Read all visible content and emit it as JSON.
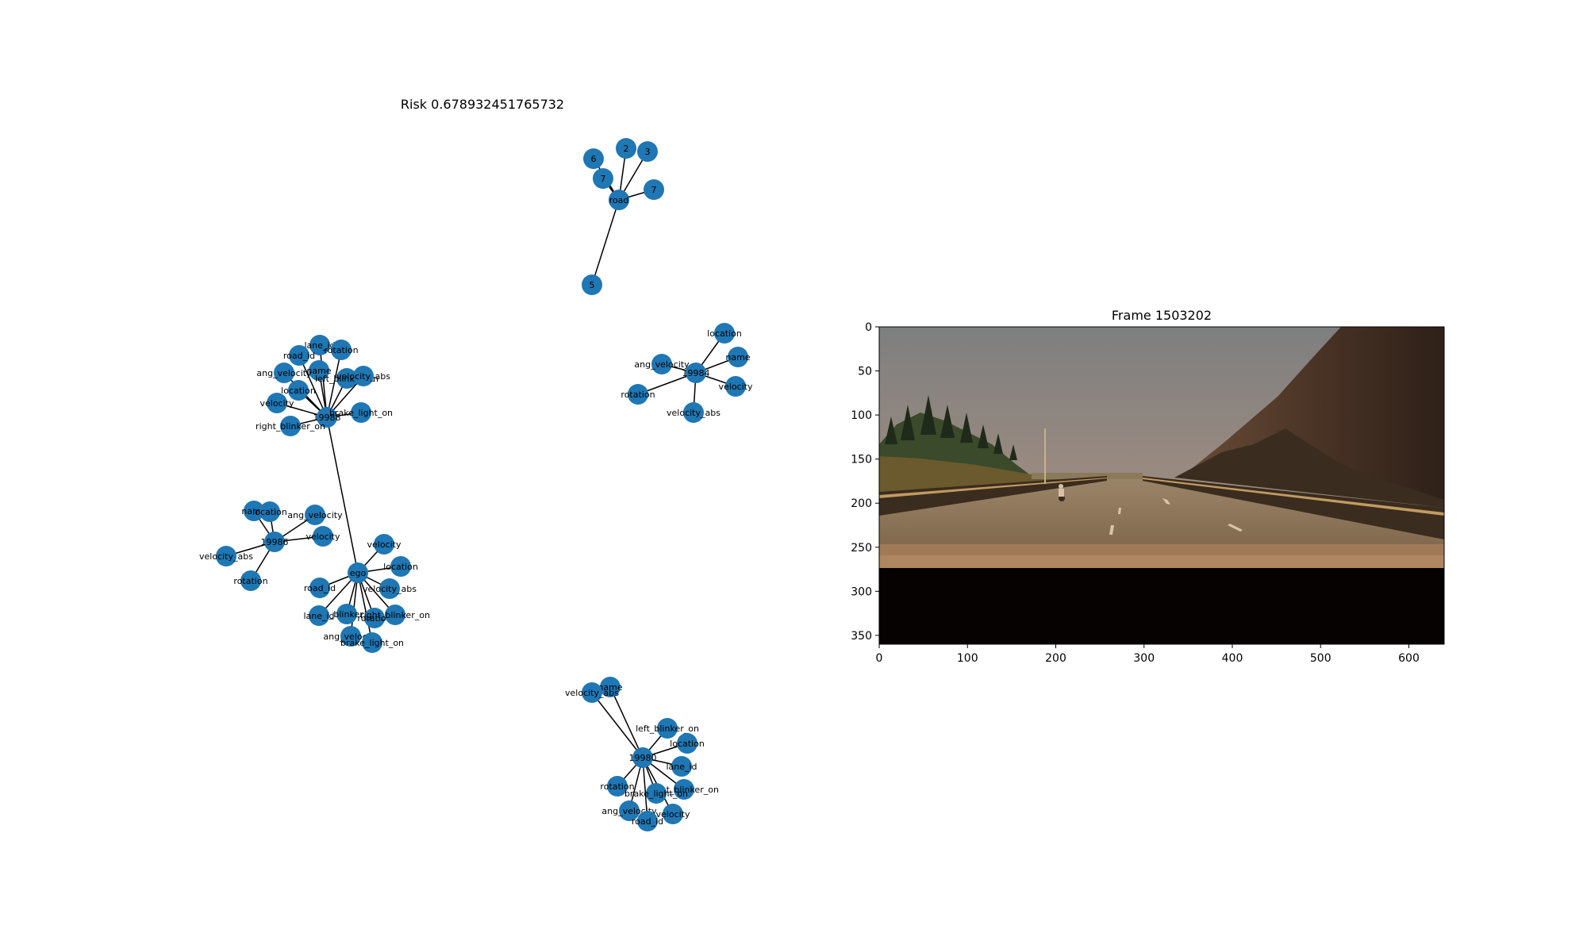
{
  "figure": {
    "graph_title": "Risk 0.678932451765732",
    "frame_title": "Frame 1503202",
    "node_color": "#1f77b4",
    "edge_color": "#000000"
  },
  "graph": {
    "nodes": [
      {
        "id": "n_road",
        "label": "road"
      },
      {
        "id": "n_6",
        "label": "6"
      },
      {
        "id": "n_2",
        "label": "2"
      },
      {
        "id": "n_3",
        "label": "3"
      },
      {
        "id": "n_7a",
        "label": "7"
      },
      {
        "id": "n_7b",
        "label": "7"
      },
      {
        "id": "n_5",
        "label": "5"
      },
      {
        "id": "a",
        "label": "19988"
      },
      {
        "id": "a_lane",
        "label": "lane_id"
      },
      {
        "id": "a_rot",
        "label": "rotation"
      },
      {
        "id": "a_road",
        "label": "road_id"
      },
      {
        "id": "a_name",
        "label": "name"
      },
      {
        "id": "a_ang",
        "label": "ang_velocity"
      },
      {
        "id": "a_left",
        "label": "left_blinker_on"
      },
      {
        "id": "a_vabs",
        "label": "velocity_abs"
      },
      {
        "id": "a_loc",
        "label": "location"
      },
      {
        "id": "a_vel",
        "label": "velocity"
      },
      {
        "id": "a_brake",
        "label": "brake_light_on"
      },
      {
        "id": "a_right",
        "label": "right_blinker_on"
      },
      {
        "id": "b",
        "label": "19986"
      },
      {
        "id": "b_name",
        "label": "name"
      },
      {
        "id": "b_loc",
        "label": "location"
      },
      {
        "id": "b_ang",
        "label": "ang_velocity"
      },
      {
        "id": "b_vel",
        "label": "velocity"
      },
      {
        "id": "b_vabs",
        "label": "velocity_abs"
      },
      {
        "id": "b_rot",
        "label": "rotation"
      },
      {
        "id": "ego",
        "label": "ego"
      },
      {
        "id": "e_vel",
        "label": "velocity"
      },
      {
        "id": "e_loc",
        "label": "location"
      },
      {
        "id": "e_road",
        "label": "road_id"
      },
      {
        "id": "e_vabs",
        "label": "velocity_abs"
      },
      {
        "id": "e_left",
        "label": "left_blinker_on"
      },
      {
        "id": "e_lane",
        "label": "lane_id"
      },
      {
        "id": "e_rot",
        "label": "rotation"
      },
      {
        "id": "e_right",
        "label": "right_blinker_on"
      },
      {
        "id": "e_ang",
        "label": "ang_velocity"
      },
      {
        "id": "e_brake",
        "label": "brake_light_on"
      },
      {
        "id": "c",
        "label": "19984"
      },
      {
        "id": "c_loc",
        "label": "location"
      },
      {
        "id": "c_name",
        "label": "name"
      },
      {
        "id": "c_ang",
        "label": "ang_velocity"
      },
      {
        "id": "c_vel",
        "label": "velocity"
      },
      {
        "id": "c_rot",
        "label": "rotation"
      },
      {
        "id": "c_vabs",
        "label": "velocity_abs"
      },
      {
        "id": "d",
        "label": "19980"
      },
      {
        "id": "d_name",
        "label": "name"
      },
      {
        "id": "d_vabs",
        "label": "velocity_abs"
      },
      {
        "id": "d_left",
        "label": "left_blinker_on"
      },
      {
        "id": "d_loc",
        "label": "location"
      },
      {
        "id": "d_lane",
        "label": "lane_id"
      },
      {
        "id": "d_rot",
        "label": "rotation"
      },
      {
        "id": "d_right",
        "label": "right_blinker_on"
      },
      {
        "id": "d_brake",
        "label": "brake_light_on"
      },
      {
        "id": "d_ang",
        "label": "ang_velocity"
      },
      {
        "id": "d_vel",
        "label": "velocity"
      },
      {
        "id": "d_road",
        "label": "road_id"
      }
    ],
    "edges": [
      [
        "n_road",
        "n_6"
      ],
      [
        "n_road",
        "n_2"
      ],
      [
        "n_road",
        "n_3"
      ],
      [
        "n_road",
        "n_7a"
      ],
      [
        "n_road",
        "n_7b"
      ],
      [
        "n_road",
        "n_5"
      ],
      [
        "a",
        "a_lane"
      ],
      [
        "a",
        "a_rot"
      ],
      [
        "a",
        "a_road"
      ],
      [
        "a",
        "a_name"
      ],
      [
        "a",
        "a_ang"
      ],
      [
        "a",
        "a_left"
      ],
      [
        "a",
        "a_vabs"
      ],
      [
        "a",
        "a_loc"
      ],
      [
        "a",
        "a_vel"
      ],
      [
        "a",
        "a_brake"
      ],
      [
        "a",
        "a_right"
      ],
      [
        "a",
        "ego"
      ],
      [
        "b",
        "b_name"
      ],
      [
        "b",
        "b_loc"
      ],
      [
        "b",
        "b_ang"
      ],
      [
        "b",
        "b_vel"
      ],
      [
        "b",
        "b_vabs"
      ],
      [
        "b",
        "b_rot"
      ],
      [
        "ego",
        "e_vel"
      ],
      [
        "ego",
        "e_loc"
      ],
      [
        "ego",
        "e_road"
      ],
      [
        "ego",
        "e_vabs"
      ],
      [
        "ego",
        "e_left"
      ],
      [
        "ego",
        "e_lane"
      ],
      [
        "ego",
        "e_rot"
      ],
      [
        "ego",
        "e_right"
      ],
      [
        "ego",
        "e_ang"
      ],
      [
        "ego",
        "e_brake"
      ],
      [
        "c",
        "c_loc"
      ],
      [
        "c",
        "c_name"
      ],
      [
        "c",
        "c_ang"
      ],
      [
        "c",
        "c_vel"
      ],
      [
        "c",
        "c_rot"
      ],
      [
        "c",
        "c_vabs"
      ],
      [
        "d",
        "d_name"
      ],
      [
        "d",
        "d_vabs"
      ],
      [
        "d",
        "d_left"
      ],
      [
        "d",
        "d_loc"
      ],
      [
        "d",
        "d_lane"
      ],
      [
        "d",
        "d_rot"
      ],
      [
        "d",
        "d_right"
      ],
      [
        "d",
        "d_brake"
      ],
      [
        "d",
        "d_ang"
      ],
      [
        "d",
        "d_vel"
      ],
      [
        "d",
        "d_road"
      ]
    ]
  },
  "frame_image": {
    "x_ticks": [
      "0",
      "100",
      "200",
      "300",
      "400",
      "500",
      "600"
    ],
    "y_ticks": [
      "0",
      "50",
      "100",
      "150",
      "200",
      "250",
      "300",
      "350"
    ],
    "x_range": [
      0,
      640
    ],
    "y_range": [
      0,
      360
    ]
  }
}
